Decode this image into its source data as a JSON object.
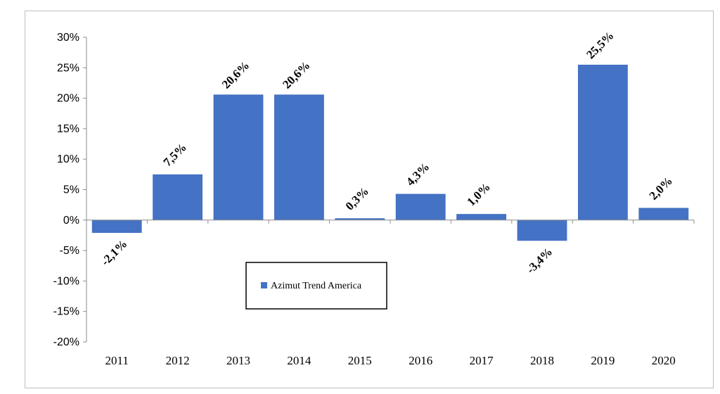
{
  "chart_data": {
    "type": "bar",
    "categories": [
      "2011",
      "2012",
      "2013",
      "2014",
      "2015",
      "2016",
      "2017",
      "2018",
      "2019",
      "2020"
    ],
    "series": [
      {
        "name": "Azimut Trend America",
        "values": [
          -2.1,
          7.5,
          20.6,
          20.6,
          0.3,
          4.3,
          1.0,
          -3.4,
          25.5,
          2.0
        ],
        "labels": [
          "-2,1%",
          "7,5%",
          "20,6%",
          "20,6%",
          "0,3%",
          "4,3%",
          "1,0%",
          "-3,4%",
          "25,5%",
          "2,0%"
        ],
        "color": "#4472C4"
      }
    ],
    "ylim": [
      -20,
      30
    ],
    "yticks": [
      30,
      25,
      20,
      15,
      10,
      5,
      0,
      -5,
      -10,
      -15,
      -20
    ],
    "ytick_labels": [
      "30%",
      "25%",
      "20%",
      "15%",
      "10%",
      "5%",
      "0%",
      "-5%",
      "-10%",
      "-15%",
      "-20%"
    ],
    "title": "",
    "xlabel": "",
    "ylabel": "",
    "grid": false,
    "legend": {
      "placement": "center-bottom",
      "boxed": true
    },
    "colors": {
      "bar": "#4472C4",
      "axis": "#8c8c8c",
      "frame": "#bfbfbf"
    }
  }
}
